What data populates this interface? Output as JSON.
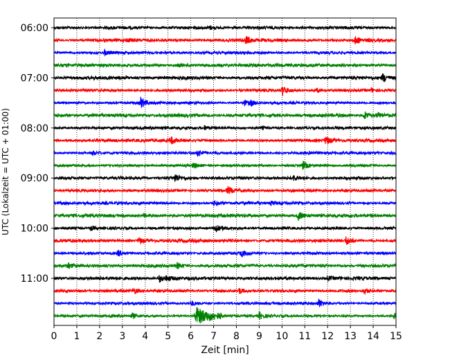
{
  "chart_data": {
    "type": "line",
    "chart_kind": "helicorder seismogram",
    "xlabel": "Zeit  [min]",
    "ylabel": "UTC (Lokalzeit = UTC + 01:00)",
    "xlim": [
      0,
      15
    ],
    "x_ticks": [
      "0",
      "1",
      "2",
      "3",
      "4",
      "5",
      "6",
      "7",
      "8",
      "9",
      "10",
      "11",
      "12",
      "13",
      "14",
      "15"
    ],
    "y_ticks": [
      "06:00",
      "07:00",
      "08:00",
      "09:00",
      "10:00",
      "11:00"
    ],
    "y_tick_rows": [
      0,
      4,
      8,
      12,
      16,
      20
    ],
    "vertical_grid": true,
    "grid_style": "dotted",
    "row_interval_min": 15,
    "colors": [
      "#000000",
      "#ff0000",
      "#0000ff",
      "#008000"
    ],
    "series": [
      {
        "start": "06:00",
        "color": "#000000",
        "events": [
          [
            6.8,
            0.3
          ]
        ]
      },
      {
        "start": "06:15",
        "color": "#ff0000",
        "events": [
          [
            3.2,
            0.2
          ],
          [
            8.4,
            0.7
          ],
          [
            13.2,
            0.7
          ]
        ]
      },
      {
        "start": "06:30",
        "color": "#0000ff",
        "events": [
          [
            2.2,
            0.4
          ]
        ]
      },
      {
        "start": "06:45",
        "color": "#008000",
        "events": [
          [
            5.4,
            0.3
          ]
        ]
      },
      {
        "start": "07:00",
        "color": "#000000",
        "events": [
          [
            14.4,
            0.8
          ]
        ]
      },
      {
        "start": "07:15",
        "color": "#ff0000",
        "events": [
          [
            10.0,
            0.9
          ],
          [
            11.5,
            0.4
          ],
          [
            13.9,
            0.3
          ]
        ]
      },
      {
        "start": "07:30",
        "color": "#0000ff",
        "events": [
          [
            3.8,
            1.0
          ],
          [
            8.3,
            0.6
          ],
          [
            8.6,
            0.4
          ]
        ]
      },
      {
        "start": "07:45",
        "color": "#008000",
        "events": [
          [
            13.6,
            0.8
          ],
          [
            14.2,
            0.4
          ]
        ]
      },
      {
        "start": "08:00",
        "color": "#000000",
        "events": [
          [
            6.6,
            0.3
          ],
          [
            9.1,
            0.3
          ]
        ]
      },
      {
        "start": "08:15",
        "color": "#ff0000",
        "events": [
          [
            5.1,
            0.7
          ],
          [
            11.9,
            0.8
          ]
        ]
      },
      {
        "start": "08:30",
        "color": "#0000ff",
        "events": [
          [
            1.7,
            0.4
          ],
          [
            6.3,
            0.6
          ],
          [
            11.2,
            0.4
          ]
        ]
      },
      {
        "start": "08:45",
        "color": "#008000",
        "events": [
          [
            6.1,
            0.5
          ],
          [
            10.9,
            0.8
          ]
        ]
      },
      {
        "start": "09:00",
        "color": "#000000",
        "events": [
          [
            5.3,
            0.7
          ],
          [
            10.5,
            0.4
          ]
        ]
      },
      {
        "start": "09:15",
        "color": "#ff0000",
        "events": [
          [
            7.6,
            0.7
          ]
        ]
      },
      {
        "start": "09:30",
        "color": "#0000ff",
        "events": [
          [
            7.0,
            0.4
          ],
          [
            9.5,
            0.3
          ]
        ]
      },
      {
        "start": "09:45",
        "color": "#008000",
        "events": [
          [
            3.9,
            0.3
          ],
          [
            10.7,
            0.8
          ]
        ]
      },
      {
        "start": "10:00",
        "color": "#000000",
        "events": [
          [
            1.6,
            0.4
          ],
          [
            7.1,
            0.9
          ]
        ]
      },
      {
        "start": "10:15",
        "color": "#ff0000",
        "events": [
          [
            3.7,
            0.6
          ],
          [
            12.8,
            0.7
          ]
        ]
      },
      {
        "start": "10:30",
        "color": "#0000ff",
        "events": [
          [
            2.8,
            0.6
          ],
          [
            8.2,
            0.7
          ]
        ]
      },
      {
        "start": "10:45",
        "color": "#008000",
        "events": [
          [
            0.6,
            0.4
          ],
          [
            5.4,
            0.5
          ]
        ]
      },
      {
        "start": "11:00",
        "color": "#000000",
        "events": [
          [
            4.6,
            0.7
          ],
          [
            4.9,
            0.4
          ],
          [
            12.0,
            0.3
          ]
        ]
      },
      {
        "start": "11:15",
        "color": "#ff0000",
        "events": [
          [
            3.5,
            0.5
          ],
          [
            8.1,
            0.5
          ],
          [
            13.6,
            0.6
          ]
        ]
      },
      {
        "start": "11:30",
        "color": "#0000ff",
        "events": [
          [
            6.0,
            0.5
          ],
          [
            11.6,
            0.8
          ]
        ]
      },
      {
        "start": "11:45",
        "color": "#008000",
        "events": [
          [
            3.4,
            0.5
          ],
          [
            6.2,
            1.5
          ],
          [
            9.0,
            0.6
          ],
          [
            14.9,
            0.5
          ]
        ]
      }
    ]
  }
}
